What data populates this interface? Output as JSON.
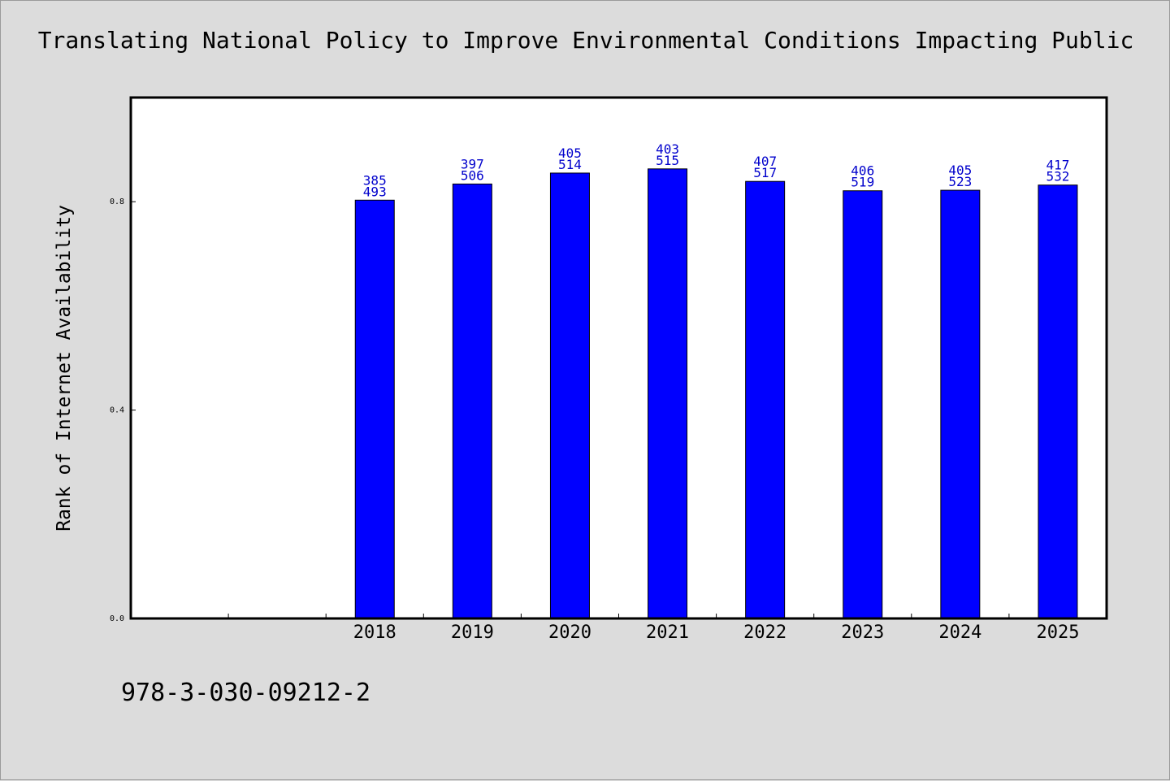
{
  "chart_data": {
    "type": "bar",
    "title": "Translating National Policy to Improve Environmental Conditions Impacting Public",
    "xlabel": "",
    "ylabel": "Rank of Internet Availability",
    "ylim": [
      0,
      1.0
    ],
    "yticks": [
      "0.0",
      "0.4",
      "0.8"
    ],
    "categories": [
      "2018",
      "2019",
      "2020",
      "2021",
      "2022",
      "2023",
      "2024",
      "2025"
    ],
    "values": [
      0.803,
      0.834,
      0.855,
      0.863,
      0.839,
      0.821,
      0.822,
      0.832
    ],
    "labels_top": [
      "385",
      "397",
      "405",
      "403",
      "407",
      "406",
      "405",
      "417"
    ],
    "labels_bottom": [
      "493",
      "506",
      "514",
      "515",
      "517",
      "519",
      "523",
      "532"
    ],
    "empty_leading_slots": 2,
    "grid": false,
    "colors": {
      "bar": "#0000ff",
      "label": "#0000cc",
      "background": "#dcdcdc",
      "plot": "#ffffff"
    }
  },
  "footer": {
    "code": "978-3-030-09212-2"
  }
}
